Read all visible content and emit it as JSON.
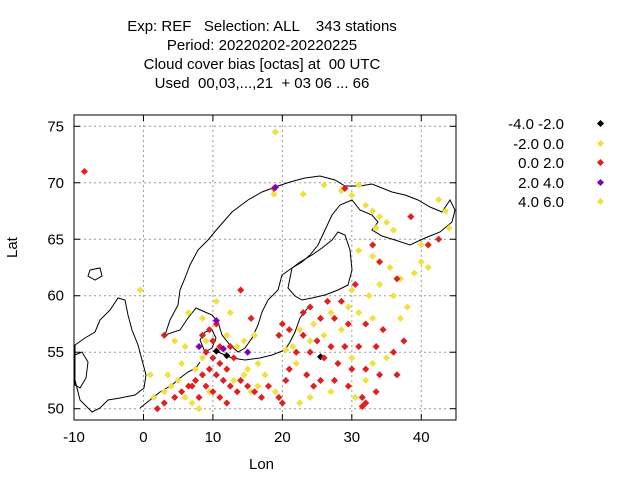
{
  "title_lines": [
    "Exp: REF   Selection: ALL    343 stations",
    "Period: 20220202-20220225",
    "Cloud cover bias [octas] at  00 UTC",
    "Used  00,03,...,21  + 03 06 ... 66"
  ],
  "chart_data": {
    "type": "scatter",
    "xlabel": "Lon",
    "ylabel": "Lat",
    "xlim": [
      -10,
      45
    ],
    "ylim": [
      49,
      76
    ],
    "xticks": [
      -10,
      0,
      10,
      20,
      30,
      40
    ],
    "yticks": [
      50,
      55,
      60,
      65,
      70,
      75
    ],
    "grid": true,
    "legend_position": "top-right, outside plot",
    "series": [
      {
        "name": "-4.0 -2.0",
        "color": "#000000",
        "points": [
          [
            10.5,
            55.1
          ],
          [
            12.0,
            54.7
          ],
          [
            25.5,
            54.6
          ]
        ]
      },
      {
        "name": "-2.0 0.0",
        "color": "#f0e040",
        "points": [
          [
            19.0,
            74.5
          ],
          [
            31.0,
            69.8
          ],
          [
            30.0,
            68.9
          ],
          [
            28.5,
            69.3
          ],
          [
            26.0,
            69.8
          ],
          [
            23.0,
            69.0
          ],
          [
            18.8,
            69.0
          ],
          [
            32.0,
            68.0
          ],
          [
            33.0,
            67.5
          ],
          [
            34.0,
            67.0
          ],
          [
            35.0,
            66.5
          ],
          [
            33.5,
            66.0
          ],
          [
            36.0,
            65.8
          ],
          [
            42.5,
            68.5
          ],
          [
            44.0,
            66.0
          ],
          [
            43.5,
            67.5
          ],
          [
            40.0,
            64.5
          ],
          [
            31.0,
            64.0
          ],
          [
            33.0,
            63.5
          ],
          [
            35.5,
            62.5
          ],
          [
            37.0,
            61.5
          ],
          [
            39.0,
            62.0
          ],
          [
            40.0,
            63.0
          ],
          [
            41.0,
            62.5
          ],
          [
            34.0,
            61.0
          ],
          [
            32.5,
            60.0
          ],
          [
            36.0,
            60.0
          ],
          [
            38.0,
            59.0
          ],
          [
            30.0,
            60.5
          ],
          [
            29.5,
            59.0
          ],
          [
            31.0,
            58.5
          ],
          [
            33.0,
            58.0
          ],
          [
            37.0,
            58.0
          ],
          [
            27.0,
            58.5
          ],
          [
            24.5,
            57.5
          ],
          [
            22.5,
            57.0
          ],
          [
            24.0,
            56.0
          ],
          [
            26.0,
            56.5
          ],
          [
            28.5,
            57.0
          ],
          [
            21.5,
            55.5
          ],
          [
            20.5,
            55.2
          ],
          [
            22.0,
            54.0
          ],
          [
            30.0,
            54.5
          ],
          [
            33.0,
            54.0
          ],
          [
            35.0,
            54.5
          ],
          [
            32.0,
            52.5
          ],
          [
            30.5,
            51.0
          ],
          [
            27.0,
            51.5
          ],
          [
            24.0,
            51.0
          ],
          [
            22.5,
            50.5
          ],
          [
            8.5,
            58.0
          ],
          [
            10.5,
            59.5
          ],
          [
            12.5,
            58.5
          ],
          [
            6.5,
            58.5
          ],
          [
            4.5,
            56.0
          ],
          [
            3.5,
            53.0
          ],
          [
            1.0,
            53.0
          ],
          [
            -0.5,
            60.5
          ],
          [
            1.5,
            51.0
          ],
          [
            4.0,
            52.0
          ],
          [
            5.0,
            52.5
          ],
          [
            6.0,
            51.0
          ],
          [
            7.0,
            50.5
          ],
          [
            8.0,
            50.0
          ],
          [
            9.5,
            51.5
          ],
          [
            13.0,
            52.5
          ],
          [
            14.5,
            53.0
          ],
          [
            15.5,
            51.5
          ],
          [
            16.5,
            52.0
          ],
          [
            17.5,
            53.0
          ],
          [
            19.0,
            51.5
          ],
          [
            3.0,
            51.5
          ],
          [
            5.5,
            54.0
          ],
          [
            7.5,
            53.5
          ],
          [
            8.5,
            54.5
          ],
          [
            13.5,
            55.5
          ],
          [
            14.5,
            56.0
          ],
          [
            16.0,
            56.5
          ],
          [
            6.0,
            55.5
          ],
          [
            9.0,
            56.0
          ],
          [
            12.0,
            56.5
          ],
          [
            15.0,
            53.5
          ],
          [
            16.5,
            54.0
          ]
        ]
      },
      {
        "name": "0.0 2.0",
        "color": "#e02020",
        "points": [
          [
            -8.5,
            71.0
          ],
          [
            18.8,
            69.5
          ],
          [
            29.0,
            69.5
          ],
          [
            38.5,
            67.0
          ],
          [
            41.0,
            64.5
          ],
          [
            42.5,
            65.0
          ],
          [
            33.0,
            64.5
          ],
          [
            34.0,
            63.0
          ],
          [
            36.5,
            61.5
          ],
          [
            30.5,
            61.0
          ],
          [
            28.5,
            59.5
          ],
          [
            26.5,
            59.5
          ],
          [
            24.0,
            59.0
          ],
          [
            23.0,
            58.5
          ],
          [
            25.5,
            58.0
          ],
          [
            27.5,
            58.0
          ],
          [
            29.5,
            57.5
          ],
          [
            32.0,
            57.5
          ],
          [
            34.5,
            57.0
          ],
          [
            21.0,
            57.0
          ],
          [
            23.0,
            56.5
          ],
          [
            25.0,
            56.0
          ],
          [
            27.0,
            55.5
          ],
          [
            29.0,
            55.5
          ],
          [
            31.0,
            55.5
          ],
          [
            33.5,
            55.5
          ],
          [
            36.0,
            55.0
          ],
          [
            37.5,
            56.0
          ],
          [
            22.0,
            55.0
          ],
          [
            24.0,
            55.0
          ],
          [
            26.0,
            54.5
          ],
          [
            28.0,
            54.0
          ],
          [
            30.0,
            53.5
          ],
          [
            32.0,
            53.5
          ],
          [
            34.0,
            53.0
          ],
          [
            36.5,
            53.0
          ],
          [
            21.0,
            53.5
          ],
          [
            23.5,
            53.0
          ],
          [
            25.5,
            52.5
          ],
          [
            27.5,
            52.5
          ],
          [
            29.5,
            52.0
          ],
          [
            31.5,
            51.0
          ],
          [
            33.5,
            51.5
          ],
          [
            20.5,
            52.5
          ],
          [
            24.5,
            52.0
          ],
          [
            32.0,
            50.5
          ],
          [
            31.5,
            50.2
          ],
          [
            20.0,
            57.5
          ],
          [
            19.5,
            56.5
          ],
          [
            3.0,
            56.5
          ],
          [
            14.0,
            60.5
          ],
          [
            15.5,
            58.0
          ],
          [
            10.0,
            56.0
          ],
          [
            9.0,
            55.0
          ],
          [
            10.0,
            54.5
          ],
          [
            11.0,
            54.0
          ],
          [
            12.0,
            53.5
          ],
          [
            9.5,
            53.5
          ],
          [
            8.5,
            53.0
          ],
          [
            7.5,
            52.5
          ],
          [
            6.5,
            52.0
          ],
          [
            5.5,
            51.5
          ],
          [
            4.5,
            51.0
          ],
          [
            3.0,
            50.5
          ],
          [
            2.0,
            50.0
          ],
          [
            10.5,
            53.0
          ],
          [
            11.5,
            52.5
          ],
          [
            12.5,
            52.0
          ],
          [
            13.5,
            51.5
          ],
          [
            9.0,
            52.0
          ],
          [
            10.0,
            51.5
          ],
          [
            11.0,
            51.0
          ],
          [
            12.0,
            50.5
          ],
          [
            8.0,
            51.0
          ],
          [
            7.0,
            52.0
          ],
          [
            13.0,
            54.5
          ],
          [
            12.5,
            55.5
          ],
          [
            11.0,
            55.5
          ],
          [
            8.5,
            56.5
          ],
          [
            9.5,
            57.0
          ],
          [
            10.5,
            57.5
          ],
          [
            14.0,
            52.5
          ],
          [
            15.0,
            52.0
          ],
          [
            16.0,
            51.5
          ],
          [
            18.0,
            52.0
          ],
          [
            17.0,
            51.0
          ],
          [
            19.5,
            51.0
          ],
          [
            20.0,
            50.5
          ]
        ]
      },
      {
        "name": "2.0 4.0",
        "color": "#8000c0",
        "points": [
          [
            19.0,
            69.6
          ],
          [
            10.5,
            57.8
          ],
          [
            8.0,
            55.5
          ],
          [
            11.5,
            55.3
          ],
          [
            15.0,
            55.0
          ]
        ]
      },
      {
        "name": "4.0 6.0",
        "color": "#f0e040",
        "points": []
      }
    ]
  }
}
